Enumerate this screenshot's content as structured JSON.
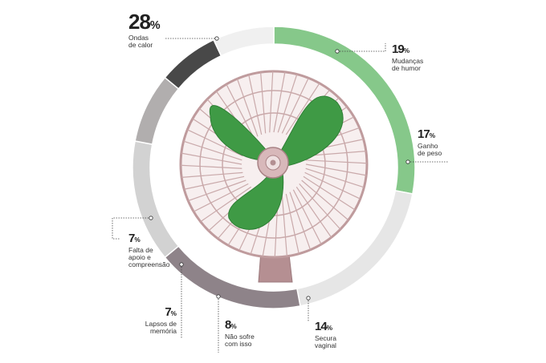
{
  "chart_data": {
    "type": "pie",
    "style": "donut",
    "title": "",
    "slices": [
      {
        "label": "Ondas de calor",
        "value": 28,
        "color": "#86c88a"
      },
      {
        "label": "Mudanças de humor",
        "value": 19,
        "color": "#e6e6e6"
      },
      {
        "label": "Ganho de peso",
        "value": 17,
        "color": "#8e8389"
      },
      {
        "label": "Secura vaginal",
        "value": 14,
        "color": "#d2d2d2"
      },
      {
        "label": "Não sofre com isso",
        "value": 8,
        "color": "#b1aeae"
      },
      {
        "label": "Lapsos de memória",
        "value": 7,
        "color": "#484848"
      },
      {
        "label": "Falta de apoio e compreensão",
        "value": 7,
        "color": "#f0f0f0"
      }
    ]
  },
  "labels": [
    {
      "value": "28",
      "unit": "%",
      "lines": [
        "Ondas",
        "de calor"
      ]
    },
    {
      "value": "19",
      "unit": "%",
      "lines": [
        "Mudanças",
        "de humor"
      ]
    },
    {
      "value": "17",
      "unit": "%",
      "lines": [
        "Ganho",
        "de peso"
      ]
    },
    {
      "value": "14",
      "unit": "%",
      "lines": [
        "Secura",
        "vaginal"
      ]
    },
    {
      "value": "8",
      "unit": "%",
      "lines": [
        "Não sofre",
        "com isso"
      ]
    },
    {
      "value": "7",
      "unit": "%",
      "lines": [
        "Lapsos de",
        "memória"
      ]
    },
    {
      "value": "7",
      "unit": "%",
      "lines": [
        "Falta de",
        "apoio e",
        "compreensão"
      ]
    }
  ],
  "illustration": {
    "subject": "fan-illustration",
    "blade_color": "#3f9a45",
    "cage_color": "#c9a9aa"
  }
}
